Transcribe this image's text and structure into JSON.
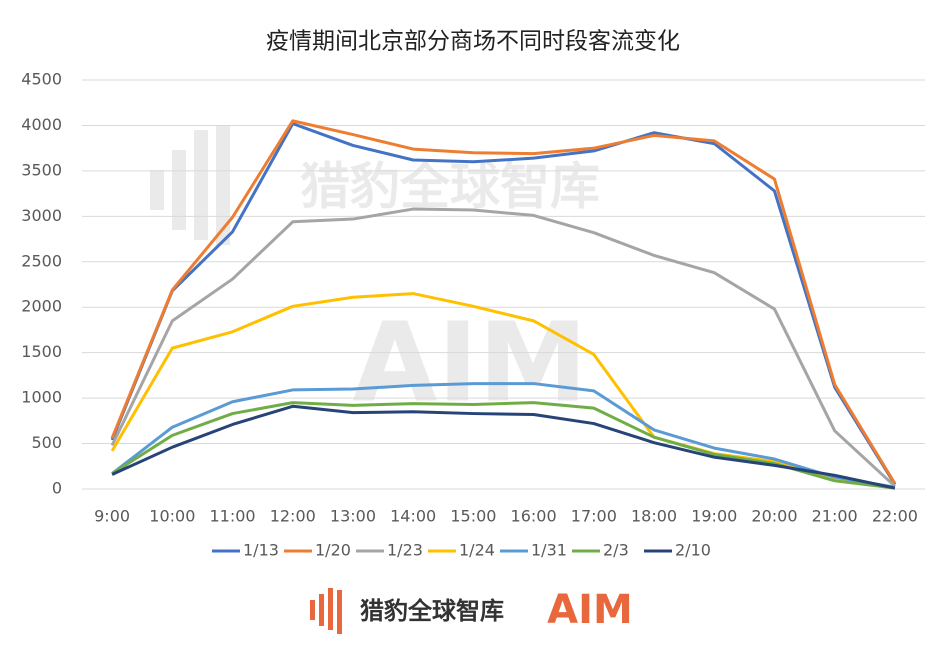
{
  "chart_data": {
    "type": "line",
    "title": "疫情期间北京部分商场不同时段客流变化",
    "categories": [
      "9:00",
      "10:00",
      "11:00",
      "12:00",
      "13:00",
      "14:00",
      "15:00",
      "16:00",
      "17:00",
      "18:00",
      "19:00",
      "20:00",
      "21:00",
      "22:00"
    ],
    "series": [
      {
        "name": "1/13",
        "color": "#4472c4",
        "values": [
          540,
          2180,
          2830,
          4020,
          3780,
          3620,
          3600,
          3640,
          3720,
          3920,
          3800,
          3280,
          1120,
          50
        ]
      },
      {
        "name": "1/20",
        "color": "#ed7d31",
        "values": [
          560,
          2190,
          2990,
          4050,
          3900,
          3740,
          3700,
          3690,
          3750,
          3890,
          3830,
          3410,
          1150,
          60
        ]
      },
      {
        "name": "1/23",
        "color": "#a5a5a5",
        "values": [
          480,
          1850,
          2310,
          2940,
          2970,
          3080,
          3070,
          3010,
          2820,
          2570,
          2380,
          1980,
          640,
          30
        ]
      },
      {
        "name": "1/24",
        "color": "#ffc000",
        "values": [
          420,
          1550,
          1730,
          2010,
          2110,
          2150,
          2010,
          1850,
          1480,
          570,
          390,
          300,
          120,
          20
        ]
      },
      {
        "name": "1/31",
        "color": "#5b9bd5",
        "values": [
          170,
          680,
          960,
          1090,
          1100,
          1140,
          1160,
          1160,
          1080,
          650,
          450,
          330,
          130,
          20
        ]
      },
      {
        "name": "2/3",
        "color": "#70ad47",
        "values": [
          170,
          590,
          830,
          950,
          920,
          940,
          930,
          950,
          890,
          570,
          380,
          280,
          90,
          10
        ]
      },
      {
        "name": "2/10",
        "color": "#264478",
        "values": [
          160,
          460,
          710,
          910,
          840,
          850,
          830,
          820,
          720,
          510,
          350,
          260,
          150,
          10
        ]
      }
    ],
    "ylim": [
      0,
      4500
    ],
    "yticks": [
      0,
      500,
      1000,
      1500,
      2000,
      2500,
      3000,
      3500,
      4000,
      4500
    ],
    "grid": true,
    "legend": "bottom"
  },
  "footer": {
    "brand": "猎豹全球智库",
    "logo": "AIM"
  }
}
